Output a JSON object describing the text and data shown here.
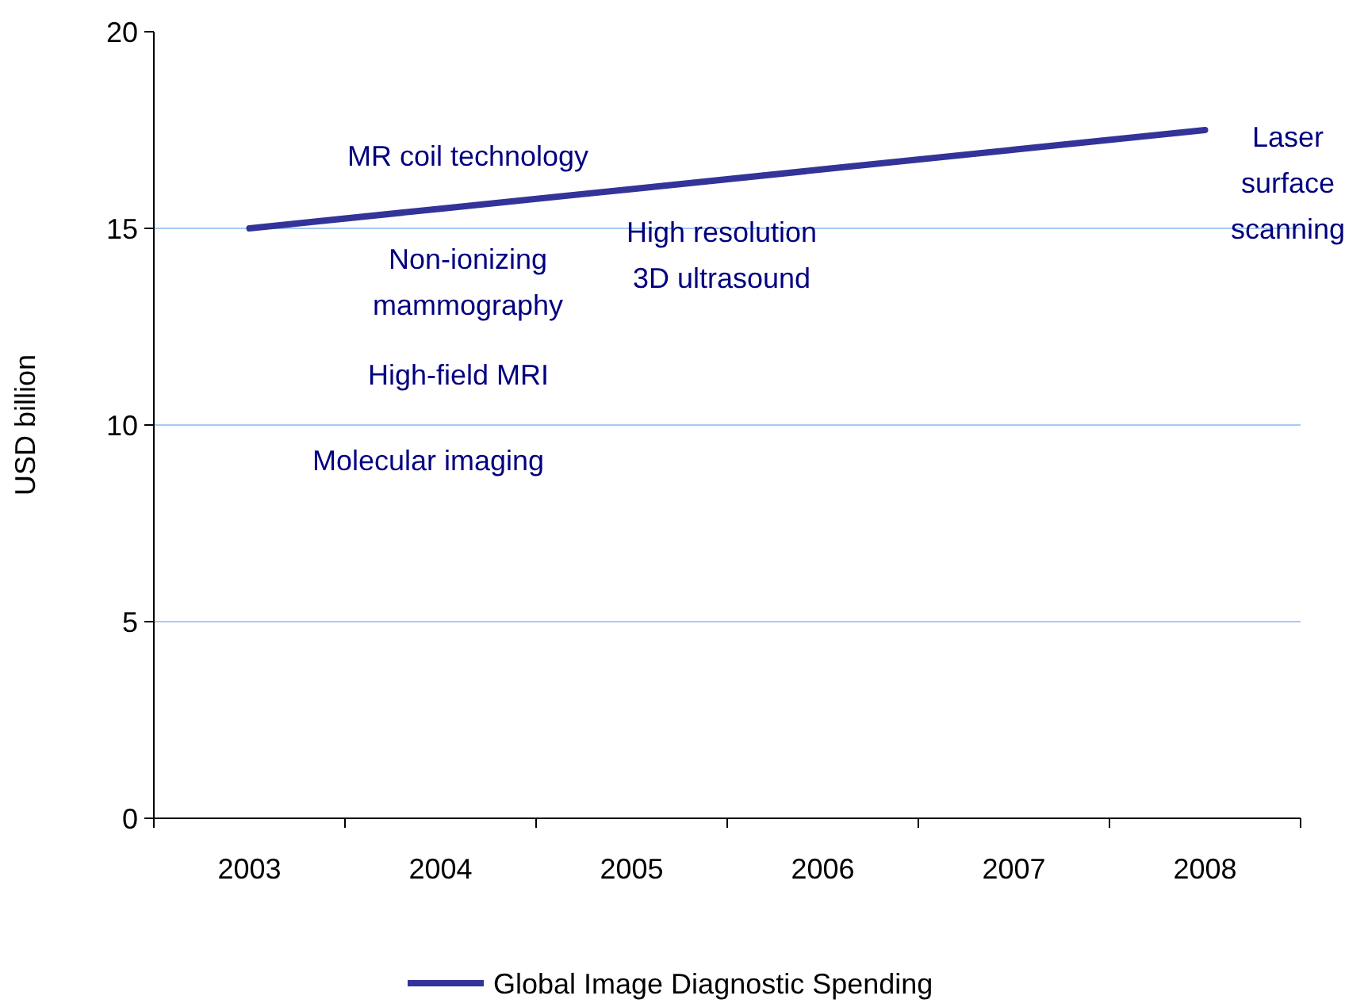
{
  "chart_data": {
    "type": "line",
    "ylabel": "USD billion",
    "categories": [
      "2003",
      "2004",
      "2005",
      "2006",
      "2007",
      "2008"
    ],
    "series": [
      {
        "name": "Global Image Diagnostic Spending",
        "color": "#333399",
        "values": [
          15,
          15.5,
          16,
          16.5,
          17,
          17.5
        ]
      }
    ],
    "ylim": [
      0,
      20
    ],
    "yticks": [
      0,
      5,
      10,
      15,
      20
    ],
    "grid": "y",
    "legend": "bottom",
    "annotations": [
      "MR coil technology",
      "Non-ionizing\nmammography",
      "High-field MRI",
      "Molecular imaging",
      "High resolution\n3D ultrasound",
      "Laser\nsurface\nscanning"
    ]
  }
}
